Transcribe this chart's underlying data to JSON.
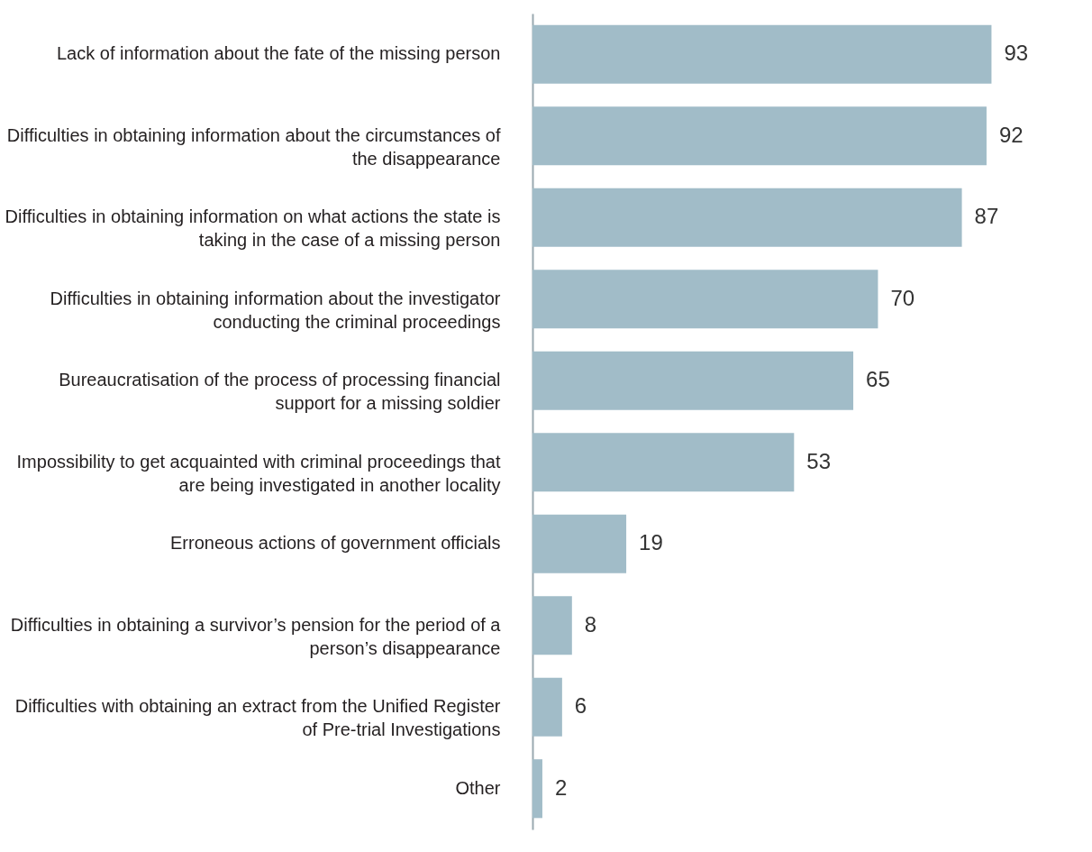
{
  "chart_data": {
    "type": "bar",
    "orientation": "horizontal",
    "data_labels": true,
    "tick_labels": "y",
    "categories": [
      "Lack of information about the fate of the missing person",
      "Difficulties in obtaining information about the circumstances of the disappearance",
      "Difficulties in obtaining information on what actions the state is taking in the case of a missing person",
      "Difficulties in obtaining information about the investigator conducting the criminal proceedings",
      "Bureaucratisation of the process of processing financial support for a missing soldier",
      "Impossibility to get acquainted with criminal proceedings that are being investigated in another locality",
      "Erroneous actions of government officials",
      "Difficulties in obtaining a survivor’s pension for the period of a person’s disappearance",
      "Difficulties with obtaining an extract from the Unified Register of Pre-trial Investigations",
      "Other"
    ],
    "values": [
      93,
      92,
      87,
      70,
      65,
      53,
      19,
      8,
      6,
      2
    ],
    "color": "#a1bcc8"
  }
}
